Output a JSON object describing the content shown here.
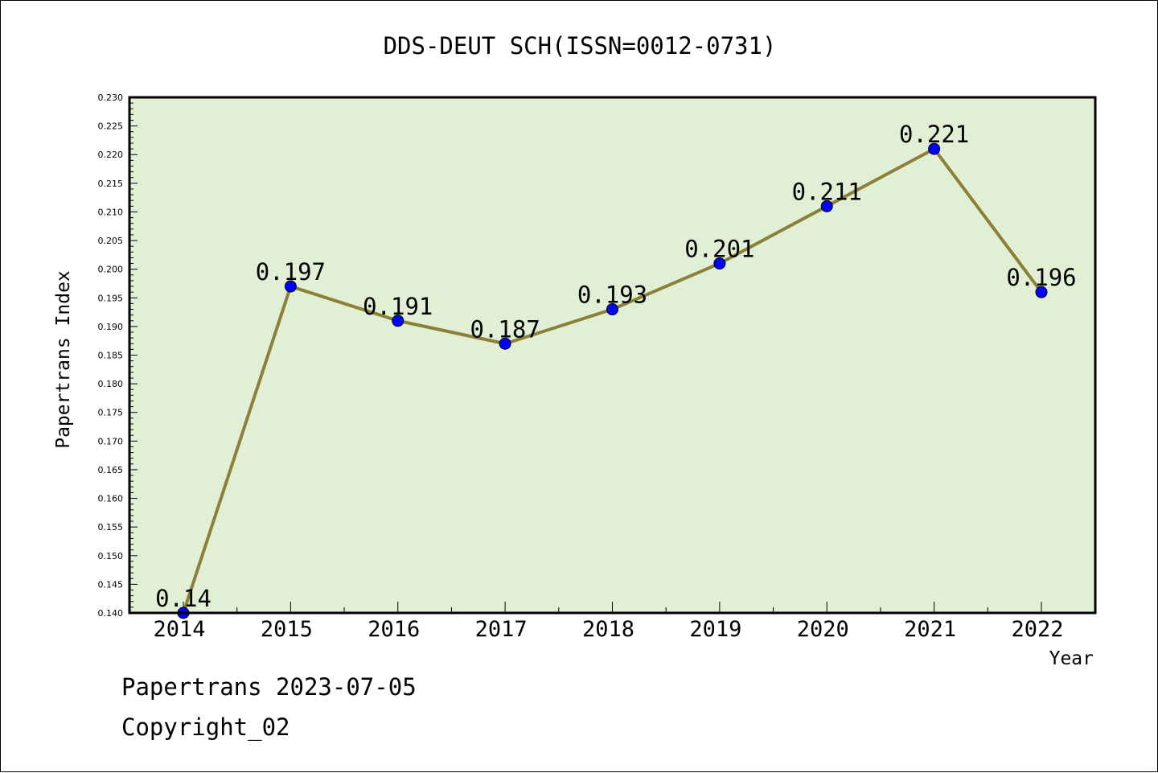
{
  "chart_data": {
    "type": "line",
    "title": "DDS-DEUT SCH(ISSN=0012-0731)",
    "xlabel": "Year",
    "ylabel": "Papertrans Index",
    "categories": [
      "2014",
      "2015",
      "2016",
      "2017",
      "2018",
      "2019",
      "2020",
      "2021",
      "2022"
    ],
    "series": [
      {
        "values": [
          0.14,
          0.197,
          0.191,
          0.187,
          0.193,
          0.201,
          0.211,
          0.221,
          0.196
        ],
        "data_labels": [
          "0.14",
          "0.197",
          "0.191",
          "0.187",
          "0.193",
          "0.201",
          "0.211",
          "0.221",
          "0.196"
        ]
      }
    ],
    "ylim": [
      0.14,
      0.23
    ],
    "yticks": [
      "0.140",
      "0.145",
      "0.150",
      "0.155",
      "0.160",
      "0.165",
      "0.170",
      "0.175",
      "0.180",
      "0.185",
      "0.190",
      "0.195",
      "0.200",
      "0.205",
      "0.210",
      "0.215",
      "0.220",
      "0.225",
      "0.230"
    ],
    "grid": false,
    "legend": "none",
    "colors": {
      "plot_background": "#e1efd5",
      "line": "#8b8038",
      "marker_fill": "#0000ff",
      "marker_edge": "#000000"
    }
  },
  "footer": {
    "line1": "Papertrans 2023-07-05",
    "line2": "Copyright_02"
  }
}
